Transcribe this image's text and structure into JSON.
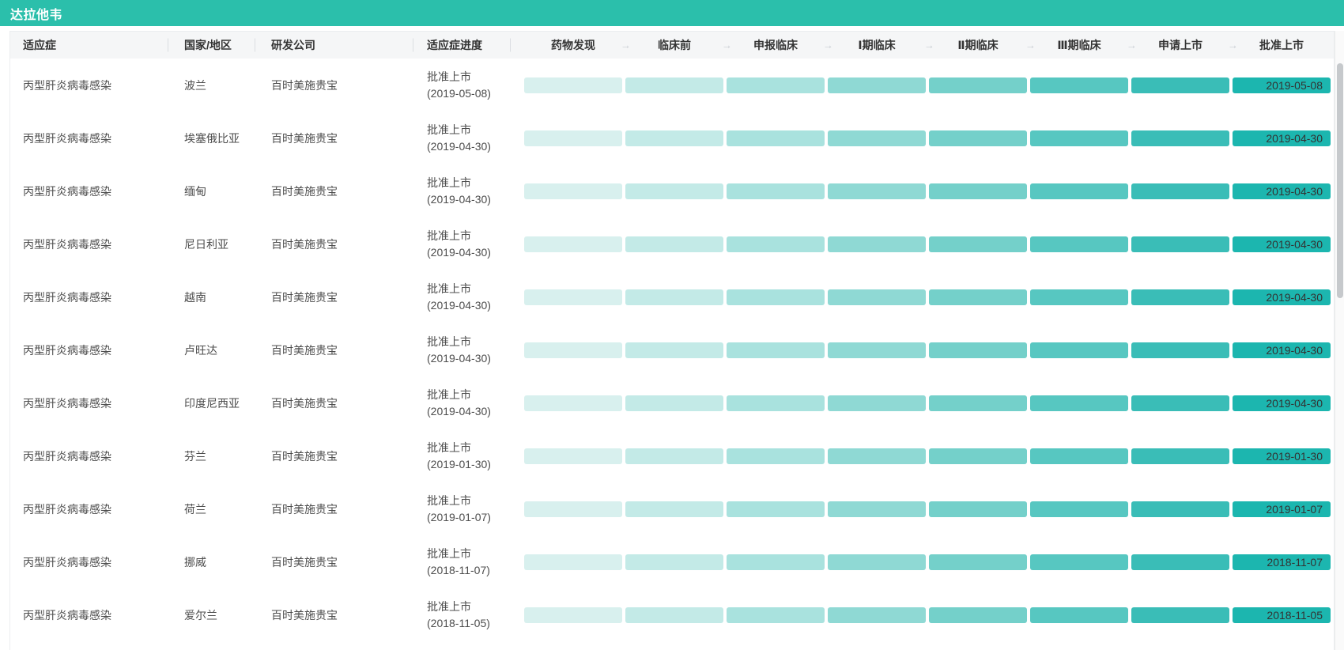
{
  "title": "达拉他韦",
  "colors": {
    "title_bar": "#2BBFAB",
    "header_row_bg": "#F5F6F7",
    "segments": [
      "#D8F0EE",
      "#C3EAE7",
      "#A9E2DE",
      "#8FD9D4",
      "#74D0CA",
      "#57C7C1",
      "#3ABDB7",
      "#1CB6AF"
    ],
    "date_chip_text": "#333333"
  },
  "icons": {
    "stage_arrow": "→"
  },
  "table": {
    "columns": {
      "indication": "适应症",
      "country": "国家/地区",
      "company": "研发公司",
      "progress": "适应症进度"
    },
    "stages": [
      "药物发现",
      "临床前",
      "申报临床",
      "Ⅰ期临床",
      "Ⅱ期临床",
      "Ⅲ期临床",
      "申请上市",
      "批准上市"
    ],
    "rows": [
      {
        "indication": "丙型肝炎病毒感染",
        "country": "波兰",
        "company": "百时美施贵宝",
        "status": "批准上市",
        "date_paren": "(2019-05-08)",
        "date": "2019-05-08"
      },
      {
        "indication": "丙型肝炎病毒感染",
        "country": "埃塞俄比亚",
        "company": "百时美施贵宝",
        "status": "批准上市",
        "date_paren": "(2019-04-30)",
        "date": "2019-04-30"
      },
      {
        "indication": "丙型肝炎病毒感染",
        "country": "缅甸",
        "company": "百时美施贵宝",
        "status": "批准上市",
        "date_paren": "(2019-04-30)",
        "date": "2019-04-30"
      },
      {
        "indication": "丙型肝炎病毒感染",
        "country": "尼日利亚",
        "company": "百时美施贵宝",
        "status": "批准上市",
        "date_paren": "(2019-04-30)",
        "date": "2019-04-30"
      },
      {
        "indication": "丙型肝炎病毒感染",
        "country": "越南",
        "company": "百时美施贵宝",
        "status": "批准上市",
        "date_paren": "(2019-04-30)",
        "date": "2019-04-30"
      },
      {
        "indication": "丙型肝炎病毒感染",
        "country": "卢旺达",
        "company": "百时美施贵宝",
        "status": "批准上市",
        "date_paren": "(2019-04-30)",
        "date": "2019-04-30"
      },
      {
        "indication": "丙型肝炎病毒感染",
        "country": "印度尼西亚",
        "company": "百时美施贵宝",
        "status": "批准上市",
        "date_paren": "(2019-04-30)",
        "date": "2019-04-30"
      },
      {
        "indication": "丙型肝炎病毒感染",
        "country": "芬兰",
        "company": "百时美施贵宝",
        "status": "批准上市",
        "date_paren": "(2019-01-30)",
        "date": "2019-01-30"
      },
      {
        "indication": "丙型肝炎病毒感染",
        "country": "荷兰",
        "company": "百时美施贵宝",
        "status": "批准上市",
        "date_paren": "(2019-01-07)",
        "date": "2019-01-07"
      },
      {
        "indication": "丙型肝炎病毒感染",
        "country": "挪威",
        "company": "百时美施贵宝",
        "status": "批准上市",
        "date_paren": "(2018-11-07)",
        "date": "2018-11-07"
      },
      {
        "indication": "丙型肝炎病毒感染",
        "country": "爱尔兰",
        "company": "百时美施贵宝",
        "status": "批准上市",
        "date_paren": "(2018-11-05)",
        "date": "2018-11-05"
      }
    ]
  }
}
